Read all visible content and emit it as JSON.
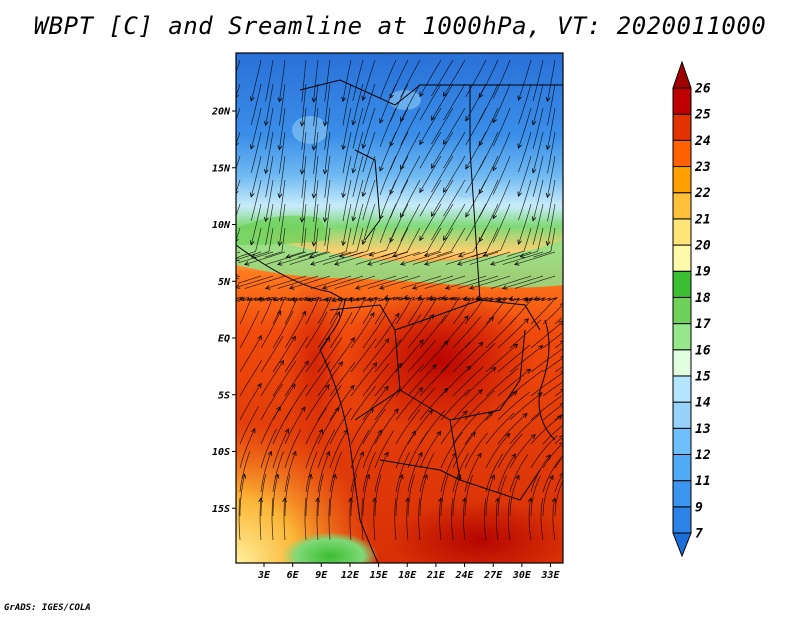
{
  "title": "WBPT [C] and Sreamline at 1000hPa, VT: 2020011000",
  "credit": "GrADS: IGES/COLA",
  "map": {
    "lat_labels": [
      {
        "text": "20N",
        "lat": 20
      },
      {
        "text": "15N",
        "lat": 15
      },
      {
        "text": "10N",
        "lat": 10
      },
      {
        "text": "5N",
        "lat": 5
      },
      {
        "text": "EQ",
        "lat": 0
      },
      {
        "text": "5S",
        "lat": -5
      },
      {
        "text": "10S",
        "lat": -10
      },
      {
        "text": "15S",
        "lat": -15
      }
    ],
    "lon_labels": [
      {
        "text": "3E",
        "lon": 3
      },
      {
        "text": "6E",
        "lon": 6
      },
      {
        "text": "9E",
        "lon": 9
      },
      {
        "text": "12E",
        "lon": 12
      },
      {
        "text": "15E",
        "lon": 15
      },
      {
        "text": "18E",
        "lon": 18
      },
      {
        "text": "21E",
        "lon": 21
      },
      {
        "text": "24E",
        "lon": 24
      },
      {
        "text": "27E",
        "lon": 27
      },
      {
        "text": "30E",
        "lon": 30
      },
      {
        "text": "33E",
        "lon": 33
      }
    ]
  },
  "colorbar": {
    "labels": [
      "7",
      "9",
      "11",
      "12",
      "13",
      "14",
      "15",
      "16",
      "17",
      "18",
      "19",
      "20",
      "21",
      "22",
      "23",
      "24",
      "25",
      "26"
    ],
    "colors": [
      "#1e6ed7",
      "#2c82e6",
      "#3c96f0",
      "#50aaf5",
      "#6ec0fa",
      "#96d2fa",
      "#b4e6ff",
      "#e0ffe0",
      "#96e68c",
      "#6ed25a",
      "#3cbe32",
      "#fffaaa",
      "#ffe578",
      "#ffc03c",
      "#ffa000",
      "#ff6000",
      "#e13200",
      "#be0000",
      "#a00000"
    ]
  }
}
